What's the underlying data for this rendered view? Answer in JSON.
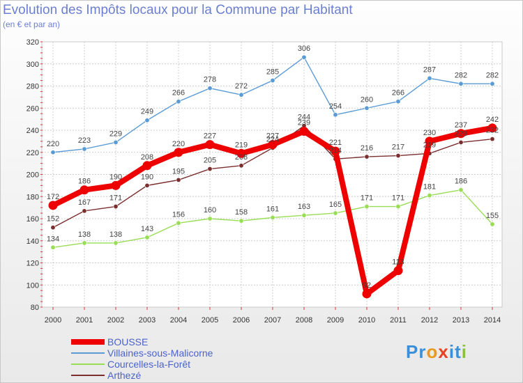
{
  "title": "Evolution des Impôts locaux pour la Commune par Habitant",
  "subtitle": "(en € et par an)",
  "logo_text": "Proxiti",
  "chart_data": {
    "type": "line",
    "title": "Evolution des Impôts locaux pour la Commune par Habitant",
    "subtitle": "(en € et par an)",
    "xlabel": "",
    "ylabel": "",
    "ylim": [
      80,
      320
    ],
    "yticks": [
      80,
      100,
      120,
      140,
      160,
      180,
      200,
      220,
      240,
      260,
      280,
      300,
      320
    ],
    "grid": true,
    "legend_position": "bottom-left",
    "categories": [
      "2000",
      "2001",
      "2002",
      "2003",
      "2004",
      "2005",
      "2006",
      "2007",
      "2008",
      "2009",
      "2010",
      "2011",
      "2012",
      "2013",
      "2014"
    ],
    "series": [
      {
        "name": "BOUSSE",
        "color": "#ee0000",
        "values": [
          172,
          186,
          190,
          208,
          220,
          227,
          219,
          227,
          239,
          221,
          92,
          113,
          230,
          237,
          242
        ]
      },
      {
        "name": "Villaines-sous-Malicorne",
        "color": "#5b9bd5",
        "values": [
          220,
          223,
          229,
          249,
          266,
          278,
          272,
          285,
          306,
          254,
          260,
          266,
          287,
          282,
          282
        ]
      },
      {
        "name": "Courcelles-la-Forêt",
        "color": "#99dd55",
        "values": [
          134,
          138,
          138,
          143,
          156,
          160,
          158,
          161,
          163,
          165,
          171,
          171,
          181,
          186,
          155
        ]
      },
      {
        "name": "Arthezé",
        "color": "#7a2e2e",
        "values": [
          152,
          167,
          171,
          190,
          195,
          205,
          208,
          224,
          244,
          214,
          216,
          217,
          219,
          229,
          232
        ]
      }
    ]
  }
}
